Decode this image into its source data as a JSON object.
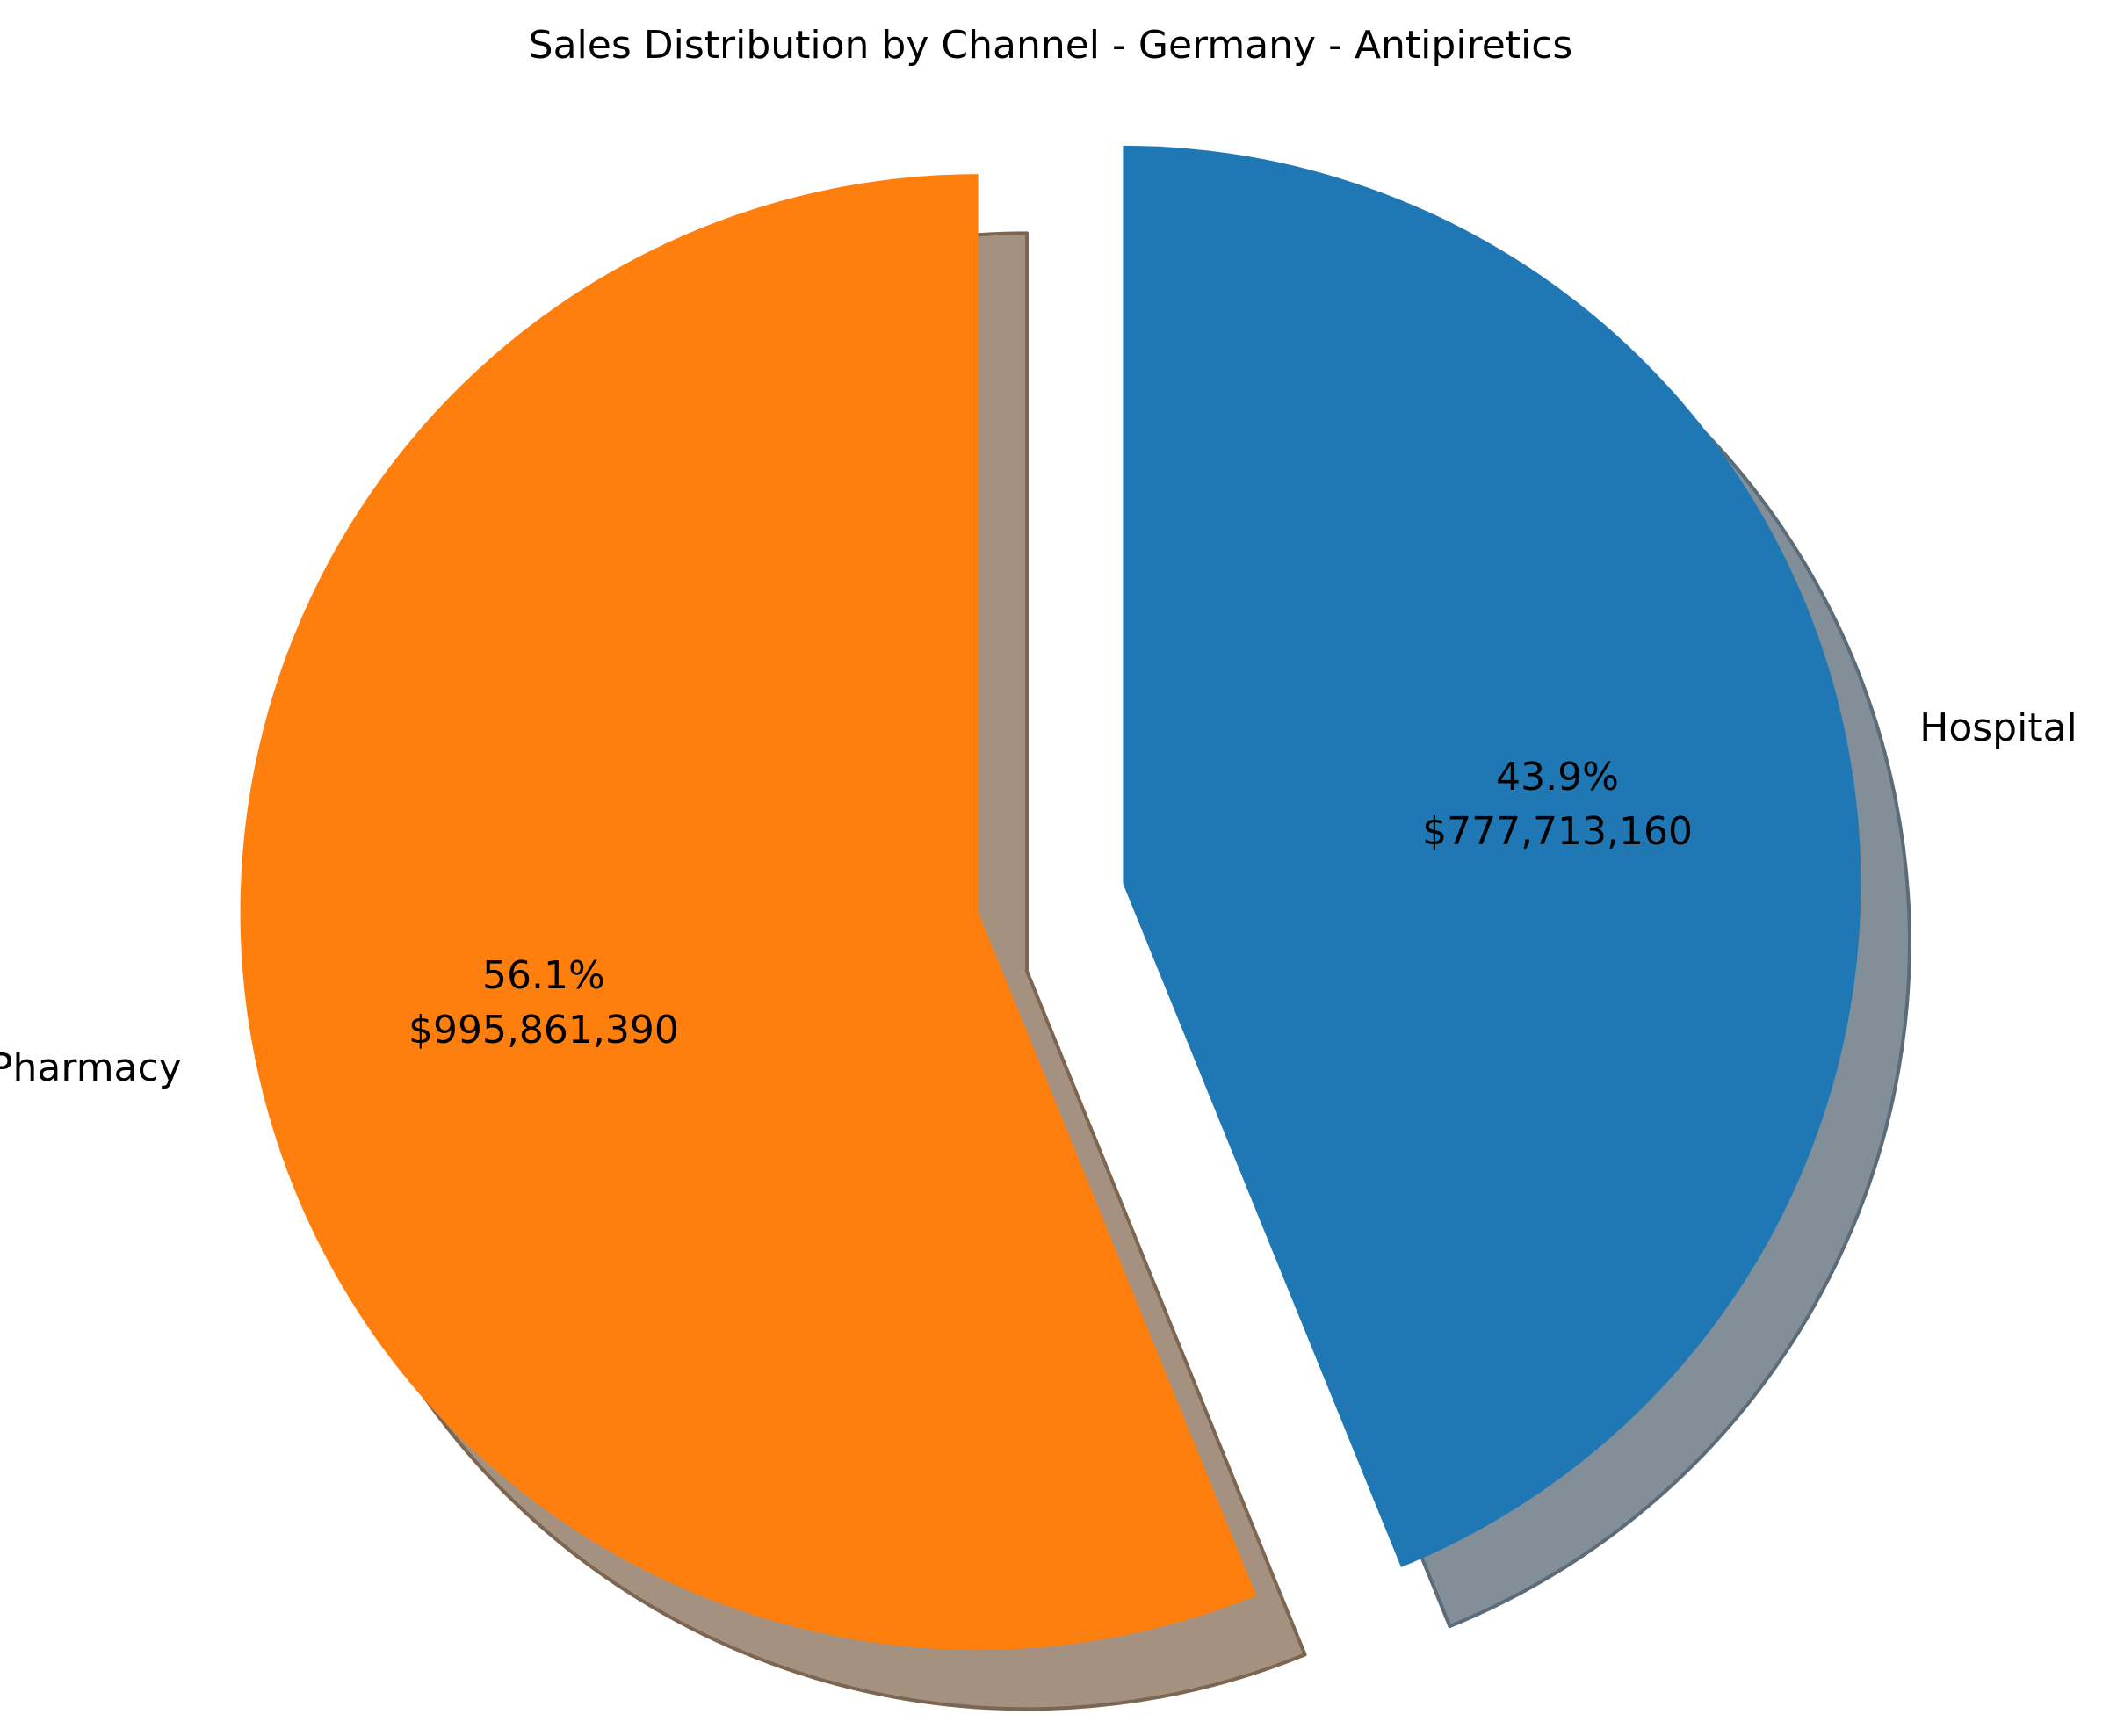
{
  "chart_data": {
    "type": "pie",
    "title": "Sales Distribution by Channel - Germany - Antipiretics",
    "categories": [
      "Hospital",
      "Pharmacy"
    ],
    "values": [
      777713160,
      995861390
    ],
    "percent_labels": [
      "43.9%",
      "56.1%"
    ],
    "value_labels": [
      "$777,713,160",
      "$995,861,390"
    ],
    "colors": [
      "#1f77b4",
      "#ff7f0e"
    ],
    "shadow": true,
    "exploded": true,
    "start_angle_deg": 90,
    "direction": "clockwise"
  }
}
